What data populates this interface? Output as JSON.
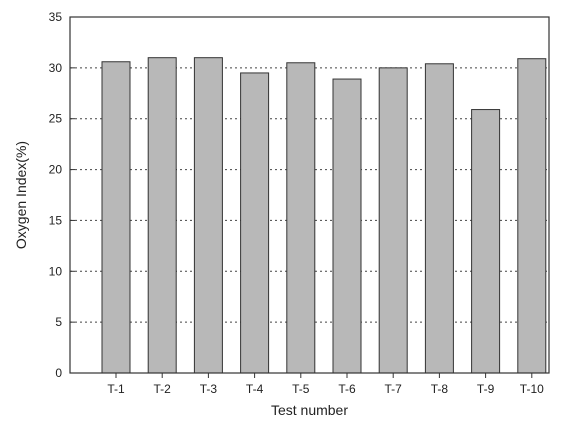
{
  "chart_data": {
    "type": "bar",
    "categories": [
      "T-1",
      "T-2",
      "T-3",
      "T-4",
      "T-5",
      "T-6",
      "T-7",
      "T-8",
      "T-9",
      "T-10"
    ],
    "values": [
      30.6,
      31.0,
      31.0,
      29.5,
      30.5,
      28.9,
      30.0,
      30.4,
      25.9,
      30.9
    ],
    "xlabel": "Test number",
    "ylabel": "Oxygen Index(%)",
    "ylim": [
      0,
      35
    ],
    "yticks": [
      0,
      5,
      10,
      15,
      20,
      25,
      30,
      35
    ],
    "grid": "horizontal-dotted",
    "bar_color": "#b8b8b8",
    "edge_color": "#333333"
  }
}
